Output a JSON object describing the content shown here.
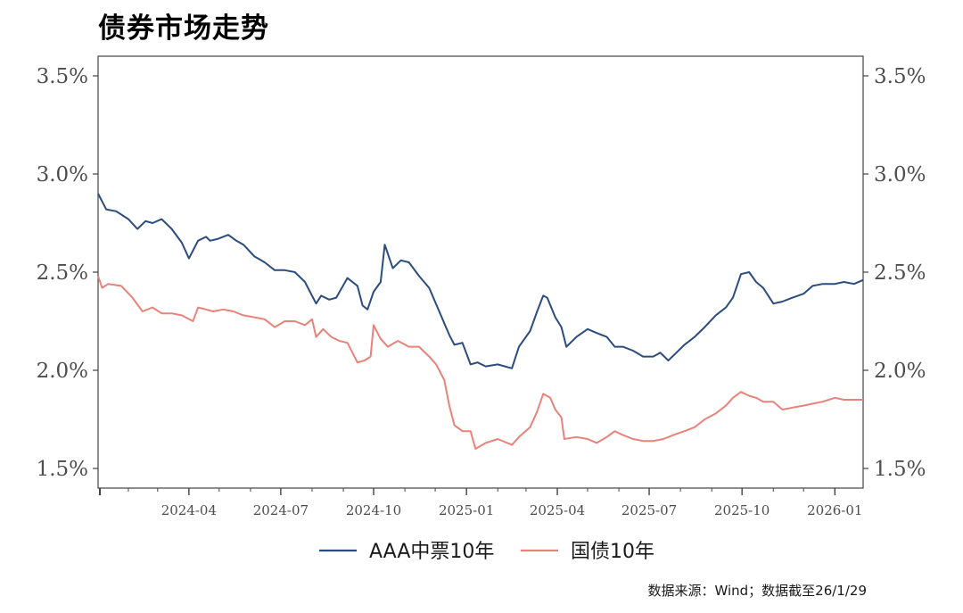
{
  "chart_data": {
    "type": "line",
    "title": "债券市场走势",
    "xlabel": "",
    "ylabel": "",
    "ylim": [
      1.4,
      3.6
    ],
    "y_ticks": [
      "1.5%",
      "2.0%",
      "2.5%",
      "3.0%",
      "3.5%"
    ],
    "y_tick_values": [
      1.5,
      2.0,
      2.5,
      3.0,
      3.5
    ],
    "x_range": [
      "2024-01-02",
      "2026-01-29"
    ],
    "x_ticks": [
      "2024-04",
      "2024-07",
      "2024-10",
      "2025-01",
      "2025-04",
      "2025-07",
      "2025-10",
      "2026-01"
    ],
    "x_tick_dates": [
      "2024-04-01",
      "2024-07-01",
      "2024-10-01",
      "2025-01-01",
      "2025-04-01",
      "2025-07-01",
      "2025-10-01",
      "2026-01-01"
    ],
    "grid": false,
    "legend_position": "bottom",
    "source_note": "数据来源：Wind；数据截至26/1/29",
    "series": [
      {
        "name": "AAA中票10年",
        "color": "#2b4c7e",
        "x": [
          "2024-01-02",
          "2024-01-10",
          "2024-01-20",
          "2024-02-01",
          "2024-02-10",
          "2024-02-18",
          "2024-02-25",
          "2024-03-05",
          "2024-03-15",
          "2024-03-25",
          "2024-04-01",
          "2024-04-10",
          "2024-04-18",
          "2024-04-22",
          "2024-04-30",
          "2024-05-10",
          "2024-05-18",
          "2024-05-25",
          "2024-06-05",
          "2024-06-15",
          "2024-06-25",
          "2024-07-05",
          "2024-07-15",
          "2024-07-25",
          "2024-08-05",
          "2024-08-10",
          "2024-08-18",
          "2024-08-25",
          "2024-09-05",
          "2024-09-15",
          "2024-09-20",
          "2024-09-25",
          "2024-10-01",
          "2024-10-08",
          "2024-10-12",
          "2024-10-20",
          "2024-10-28",
          "2024-11-05",
          "2024-11-15",
          "2024-11-25",
          "2024-12-05",
          "2024-12-15",
          "2024-12-20",
          "2024-12-28",
          "2025-01-05",
          "2025-01-12",
          "2025-01-20",
          "2025-02-01",
          "2025-02-15",
          "2025-02-22",
          "2025-03-05",
          "2025-03-12",
          "2025-03-18",
          "2025-03-22",
          "2025-03-30",
          "2025-04-05",
          "2025-04-10",
          "2025-04-20",
          "2025-05-01",
          "2025-05-10",
          "2025-05-20",
          "2025-05-28",
          "2025-06-05",
          "2025-06-15",
          "2025-06-25",
          "2025-07-05",
          "2025-07-12",
          "2025-07-20",
          "2025-07-28",
          "2025-08-05",
          "2025-08-15",
          "2025-08-25",
          "2025-09-05",
          "2025-09-15",
          "2025-09-22",
          "2025-09-30",
          "2025-10-08",
          "2025-10-15",
          "2025-10-22",
          "2025-11-01",
          "2025-11-10",
          "2025-11-20",
          "2025-12-01",
          "2025-12-10",
          "2025-12-20",
          "2026-01-01",
          "2026-01-10",
          "2026-01-20",
          "2026-01-29"
        ],
        "values": [
          2.9,
          2.82,
          2.81,
          2.77,
          2.72,
          2.76,
          2.75,
          2.77,
          2.72,
          2.65,
          2.57,
          2.66,
          2.68,
          2.66,
          2.67,
          2.69,
          2.66,
          2.64,
          2.58,
          2.55,
          2.51,
          2.51,
          2.5,
          2.45,
          2.34,
          2.38,
          2.36,
          2.37,
          2.47,
          2.43,
          2.33,
          2.31,
          2.4,
          2.45,
          2.64,
          2.52,
          2.56,
          2.55,
          2.48,
          2.42,
          2.3,
          2.18,
          2.13,
          2.14,
          2.03,
          2.04,
          2.02,
          2.03,
          2.01,
          2.12,
          2.2,
          2.3,
          2.38,
          2.37,
          2.27,
          2.22,
          2.12,
          2.17,
          2.21,
          2.19,
          2.17,
          2.12,
          2.12,
          2.1,
          2.07,
          2.07,
          2.09,
          2.05,
          2.09,
          2.13,
          2.17,
          2.22,
          2.28,
          2.32,
          2.37,
          2.49,
          2.5,
          2.45,
          2.42,
          2.34,
          2.35,
          2.37,
          2.39,
          2.43,
          2.44,
          2.44,
          2.45,
          2.44,
          2.46
        ]
      },
      {
        "name": "国债10年",
        "color": "#e8837a",
        "x": [
          "2024-01-02",
          "2024-01-06",
          "2024-01-12",
          "2024-01-25",
          "2024-02-05",
          "2024-02-15",
          "2024-02-25",
          "2024-03-05",
          "2024-03-15",
          "2024-03-25",
          "2024-04-05",
          "2024-04-10",
          "2024-04-18",
          "2024-04-25",
          "2024-05-05",
          "2024-05-15",
          "2024-05-25",
          "2024-06-05",
          "2024-06-15",
          "2024-06-25",
          "2024-07-05",
          "2024-07-15",
          "2024-07-25",
          "2024-08-01",
          "2024-08-05",
          "2024-08-12",
          "2024-08-20",
          "2024-08-28",
          "2024-09-05",
          "2024-09-15",
          "2024-09-22",
          "2024-09-28",
          "2024-10-01",
          "2024-10-08",
          "2024-10-15",
          "2024-10-25",
          "2024-11-05",
          "2024-11-15",
          "2024-11-25",
          "2024-12-02",
          "2024-12-10",
          "2024-12-15",
          "2024-12-20",
          "2024-12-28",
          "2025-01-05",
          "2025-01-10",
          "2025-01-20",
          "2025-02-01",
          "2025-02-15",
          "2025-02-22",
          "2025-03-05",
          "2025-03-12",
          "2025-03-18",
          "2025-03-25",
          "2025-03-30",
          "2025-04-05",
          "2025-04-08",
          "2025-04-20",
          "2025-05-01",
          "2025-05-10",
          "2025-05-20",
          "2025-05-28",
          "2025-06-05",
          "2025-06-15",
          "2025-06-25",
          "2025-07-05",
          "2025-07-15",
          "2025-07-25",
          "2025-08-05",
          "2025-08-15",
          "2025-08-25",
          "2025-09-05",
          "2025-09-15",
          "2025-09-22",
          "2025-09-30",
          "2025-10-08",
          "2025-10-15",
          "2025-10-22",
          "2025-11-01",
          "2025-11-10",
          "2025-11-20",
          "2025-12-01",
          "2025-12-10",
          "2025-12-20",
          "2026-01-01",
          "2026-01-10",
          "2026-01-20",
          "2026-01-29"
        ],
        "values": [
          2.48,
          2.42,
          2.44,
          2.43,
          2.37,
          2.3,
          2.32,
          2.29,
          2.29,
          2.28,
          2.25,
          2.32,
          2.31,
          2.3,
          2.31,
          2.3,
          2.28,
          2.27,
          2.26,
          2.22,
          2.25,
          2.25,
          2.23,
          2.26,
          2.17,
          2.21,
          2.17,
          2.15,
          2.14,
          2.04,
          2.05,
          2.07,
          2.23,
          2.16,
          2.12,
          2.15,
          2.12,
          2.12,
          2.07,
          2.03,
          1.95,
          1.82,
          1.72,
          1.69,
          1.69,
          1.6,
          1.63,
          1.65,
          1.62,
          1.66,
          1.71,
          1.79,
          1.88,
          1.86,
          1.8,
          1.76,
          1.65,
          1.66,
          1.65,
          1.63,
          1.66,
          1.69,
          1.67,
          1.65,
          1.64,
          1.64,
          1.65,
          1.67,
          1.69,
          1.71,
          1.75,
          1.78,
          1.82,
          1.86,
          1.89,
          1.87,
          1.86,
          1.84,
          1.84,
          1.8,
          1.81,
          1.82,
          1.83,
          1.84,
          1.86,
          1.85,
          1.85,
          1.85
        ]
      }
    ]
  }
}
